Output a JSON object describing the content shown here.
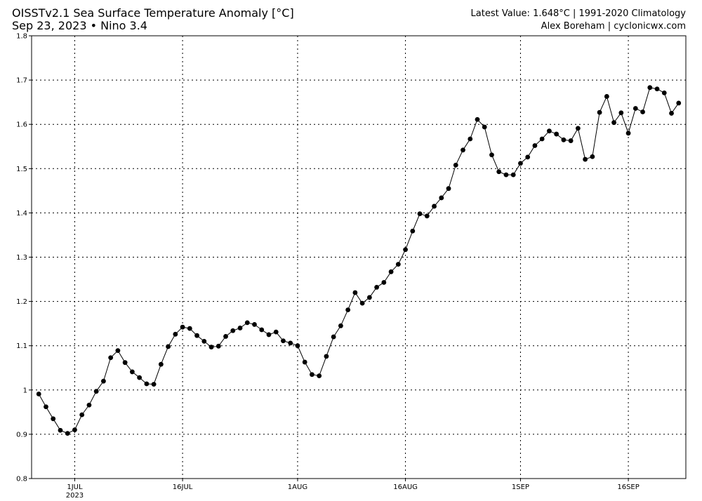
{
  "header": {
    "title": "OISSTv2.1 Sea Surface Temperature Anomaly [°C]",
    "date_region": "Sep 23, 2023 • Nino 3.4",
    "latest": "Latest Value: 1.648°C | 1991-2020 Climatology",
    "credit": "Alex Boreham | cyclonicwx.com"
  },
  "colors": {
    "line": "#000000",
    "grid": "#000000",
    "background": "#ffffff"
  },
  "chart_data": {
    "type": "line",
    "title": "OISSTv2.1 Sea Surface Temperature Anomaly [°C]",
    "ylim": [
      0.8,
      1.8
    ],
    "yticks": [
      0.8,
      0.9,
      1,
      1.1,
      1.2,
      1.3,
      1.4,
      1.5,
      1.6,
      1.7,
      1.8
    ],
    "ytick_labels": [
      "0.8",
      "0.9",
      "1",
      "1.1",
      "1.2",
      "1.3",
      "1.4",
      "1.5",
      "1.6",
      "1.7",
      "1.8"
    ],
    "xlim": [
      "2023-06-25",
      "2023-09-24"
    ],
    "xticks": [
      {
        "date": "2023-07-01",
        "label": "1JUL",
        "sublabel": "2023"
      },
      {
        "date": "2023-07-16",
        "label": "16JUL",
        "sublabel": ""
      },
      {
        "date": "2023-08-01",
        "label": "1AUG",
        "sublabel": ""
      },
      {
        "date": "2023-08-16",
        "label": "16AUG",
        "sublabel": ""
      },
      {
        "date": "2023-09-01",
        "label": "1SEP",
        "sublabel": ""
      },
      {
        "date": "2023-09-16",
        "label": "16SEP",
        "sublabel": ""
      }
    ],
    "grid": true,
    "series": [
      {
        "x": [
          "2023-06-26",
          "2023-06-27",
          "2023-06-28",
          "2023-06-29",
          "2023-06-30",
          "2023-07-01",
          "2023-07-02",
          "2023-07-03",
          "2023-07-04",
          "2023-07-05",
          "2023-07-06",
          "2023-07-07",
          "2023-07-08",
          "2023-07-09",
          "2023-07-10",
          "2023-07-11",
          "2023-07-12",
          "2023-07-13",
          "2023-07-14",
          "2023-07-15",
          "2023-07-16",
          "2023-07-17",
          "2023-07-18",
          "2023-07-19",
          "2023-07-20",
          "2023-07-21",
          "2023-07-22",
          "2023-07-23",
          "2023-07-24",
          "2023-07-25",
          "2023-07-26",
          "2023-07-27",
          "2023-07-28",
          "2023-07-29",
          "2023-07-30",
          "2023-07-31",
          "2023-08-01",
          "2023-08-02",
          "2023-08-03",
          "2023-08-04",
          "2023-08-05",
          "2023-08-06",
          "2023-08-07",
          "2023-08-08",
          "2023-08-09",
          "2023-08-10",
          "2023-08-11",
          "2023-08-12",
          "2023-08-13",
          "2023-08-14",
          "2023-08-15",
          "2023-08-16",
          "2023-08-17",
          "2023-08-18",
          "2023-08-19",
          "2023-08-20",
          "2023-08-21",
          "2023-08-22",
          "2023-08-23",
          "2023-08-24",
          "2023-08-25",
          "2023-08-26",
          "2023-08-27",
          "2023-08-28",
          "2023-08-29",
          "2023-08-30",
          "2023-08-31",
          "2023-09-01",
          "2023-09-02",
          "2023-09-03",
          "2023-09-04",
          "2023-09-05",
          "2023-09-06",
          "2023-09-07",
          "2023-09-08",
          "2023-09-09",
          "2023-09-10",
          "2023-09-11",
          "2023-09-12",
          "2023-09-13",
          "2023-09-14",
          "2023-09-15",
          "2023-09-16",
          "2023-09-17",
          "2023-09-18",
          "2023-09-19",
          "2023-09-20",
          "2023-09-21",
          "2023-09-22",
          "2023-09-23"
        ],
        "y": [
          0.991,
          0.962,
          0.935,
          0.909,
          0.902,
          0.91,
          0.944,
          0.966,
          0.997,
          1.02,
          1.073,
          1.089,
          1.062,
          1.041,
          1.028,
          1.014,
          1.013,
          1.058,
          1.098,
          1.126,
          1.142,
          1.139,
          1.123,
          1.11,
          1.097,
          1.099,
          1.121,
          1.134,
          1.14,
          1.152,
          1.148,
          1.136,
          1.125,
          1.131,
          1.111,
          1.106,
          1.1,
          1.063,
          1.035,
          1.032,
          1.076,
          1.12,
          1.145,
          1.181,
          1.22,
          1.196,
          1.209,
          1.232,
          1.243,
          1.267,
          1.284,
          1.317,
          1.359,
          1.398,
          1.393,
          1.415,
          1.434,
          1.455,
          1.508,
          1.542,
          1.567,
          1.611,
          1.594,
          1.531,
          1.493,
          1.486,
          1.486,
          1.512,
          1.526,
          1.552,
          1.567,
          1.585,
          1.578,
          1.565,
          1.563,
          1.591,
          1.521,
          1.527,
          1.627,
          1.663,
          1.604,
          1.626,
          1.58,
          1.636,
          1.628,
          1.683,
          1.68,
          1.671,
          1.625,
          1.648
        ]
      }
    ]
  }
}
